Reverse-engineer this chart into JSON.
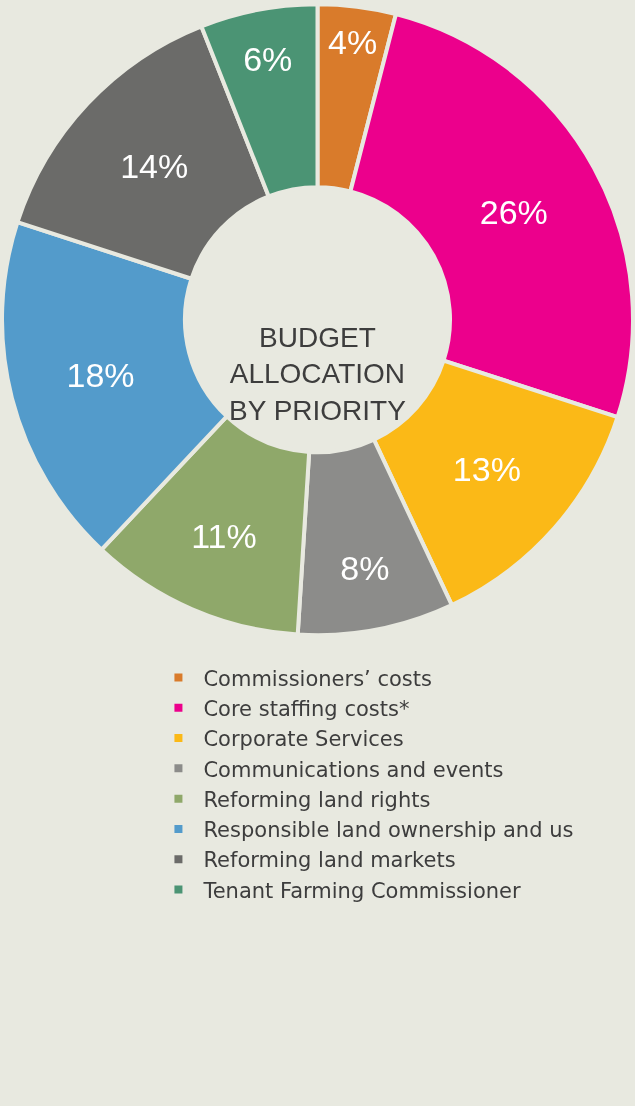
{
  "chart_data": {
    "type": "donut",
    "title": "BUDGET ALLOCATION BY PRIORITY",
    "categories": [
      "Commissioners’ costs",
      "Core staffing costs*",
      "Corporate Services",
      "Communications and events",
      "Reforming land rights",
      "Responsible land ownership and us",
      "Reforming land markets",
      "Tenant Farming Commissioner"
    ],
    "values": [
      4,
      26,
      13,
      8,
      11,
      18,
      14,
      6
    ],
    "value_labels": [
      "4%",
      "26%",
      "13%",
      "8%",
      "11%",
      "18%",
      "14%",
      "6%"
    ],
    "colors": [
      "#d97b2b",
      "#ec008c",
      "#fbb917",
      "#8c8c8a",
      "#8fa86a",
      "#539bcb",
      "#6b6b69",
      "#4b9474"
    ],
    "legend": "bottom"
  }
}
